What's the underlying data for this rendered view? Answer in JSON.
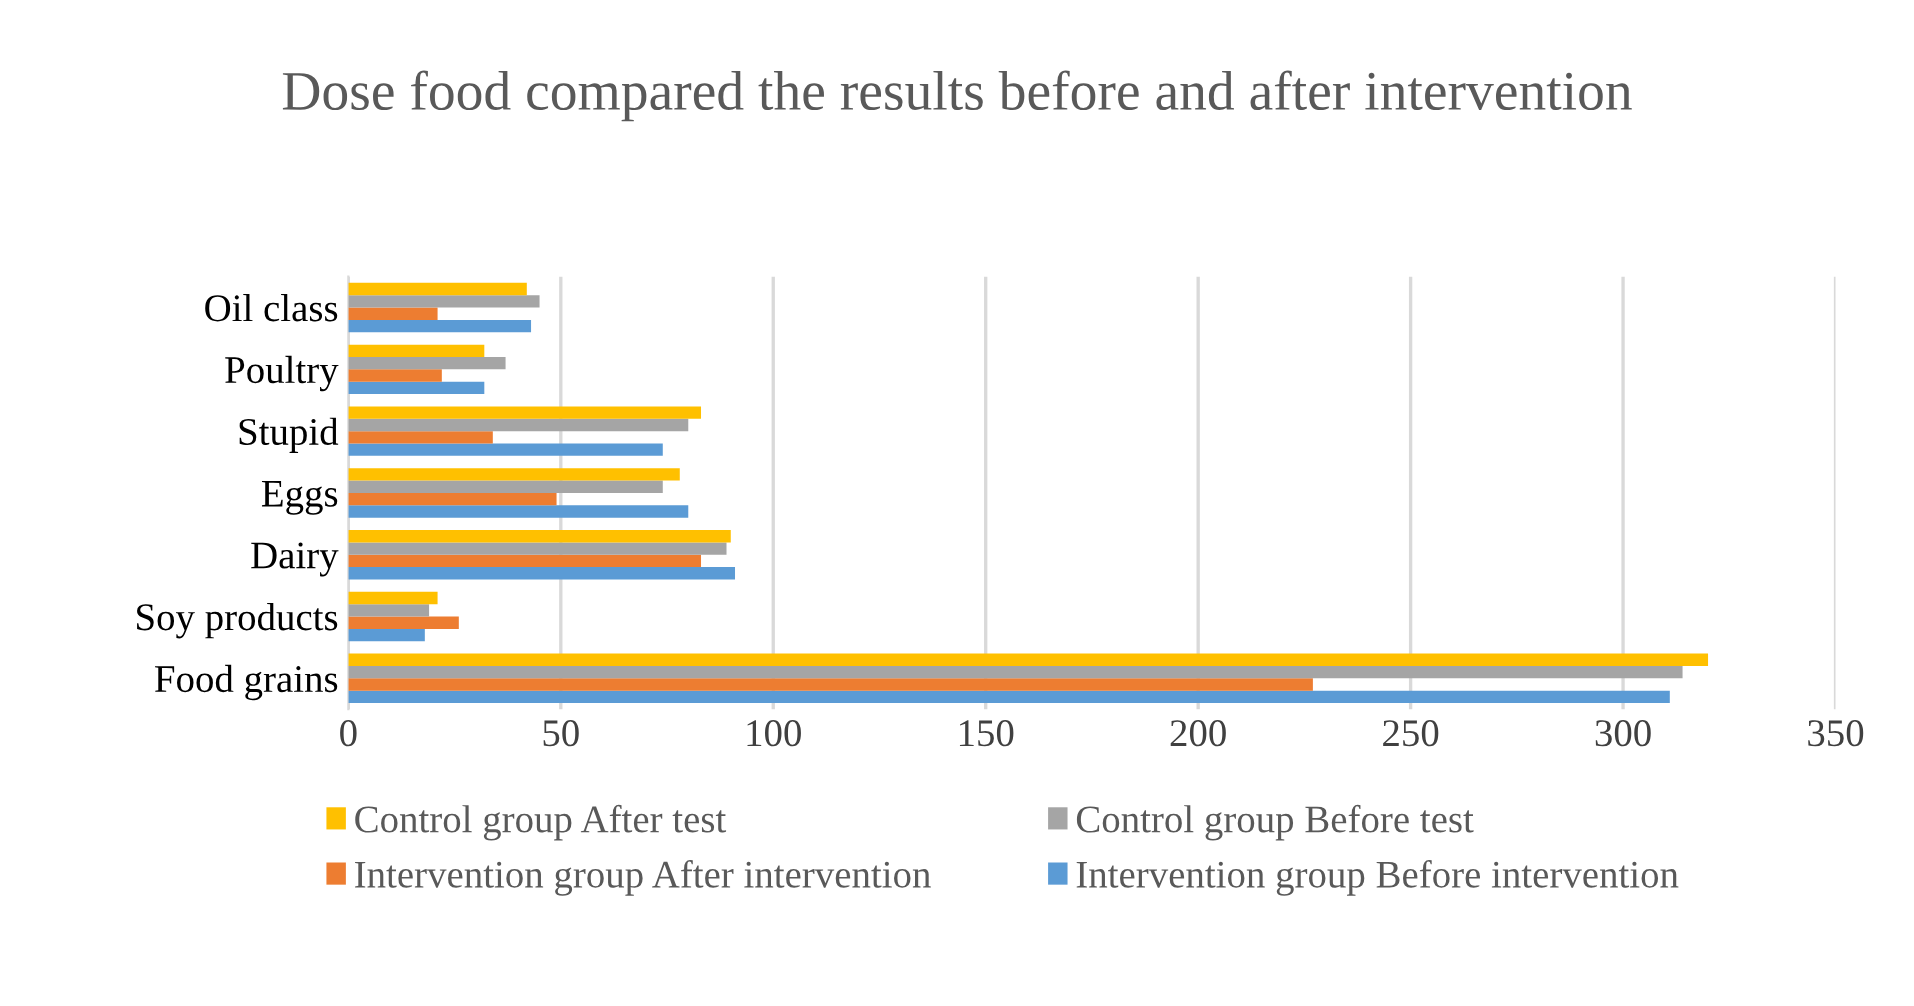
{
  "chart_data": {
    "type": "bar",
    "orientation": "horizontal",
    "title": "Dose food compared the results before and after intervention",
    "categories": [
      "Oil class",
      "Poultry",
      "Stupid",
      "Eggs",
      "Dairy",
      "Soy products",
      "Food grains"
    ],
    "series": [
      {
        "name": "Intervention group Before intervention",
        "color": "#5b9bd5",
        "values": [
          43,
          32,
          74,
          80,
          91,
          18,
          311
        ]
      },
      {
        "name": "Intervention group After intervention",
        "color": "#ed7d31",
        "values": [
          21,
          22,
          34,
          49,
          83,
          26,
          227
        ]
      },
      {
        "name": "Control group Before test",
        "color": "#a5a5a5",
        "values": [
          45,
          37,
          80,
          74,
          89,
          19,
          314
        ]
      },
      {
        "name": "Control group After test",
        "color": "#ffc000",
        "values": [
          42,
          32,
          83,
          78,
          90,
          21,
          320
        ]
      }
    ],
    "xlim": [
      0,
      350
    ],
    "xticks": [
      0,
      50,
      100,
      150,
      200,
      250,
      300,
      350
    ],
    "grid": "x",
    "legend": "bottom"
  }
}
